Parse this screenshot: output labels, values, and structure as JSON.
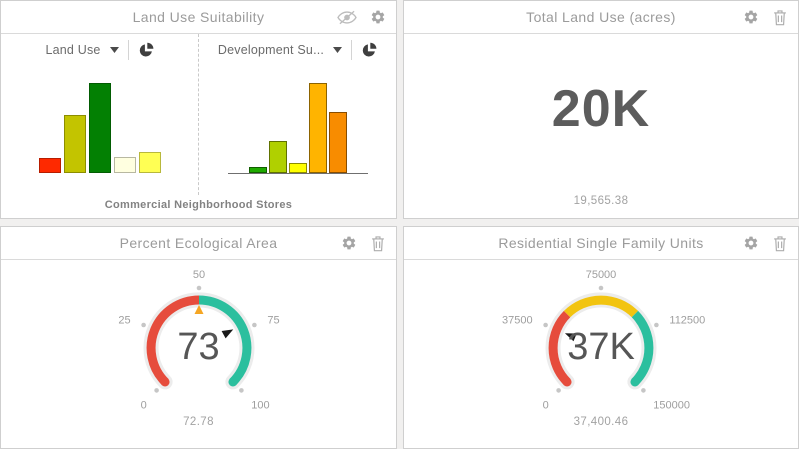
{
  "colors": {
    "gauge_red": "#e64c3c",
    "gauge_teal": "#2bbf9e",
    "gauge_yellow": "#f2c410",
    "threshold_orange": "#f5a623",
    "panel_border": "#cfcfcf",
    "header_text": "#9b9b9b"
  },
  "panels": {
    "suitability": {
      "title": "Land Use Suitability",
      "header_icons": [
        "visibility-off",
        "gear"
      ],
      "selectors": [
        {
          "label": "Land Use"
        },
        {
          "label": "Development Su..."
        }
      ],
      "caption": "Commercial Neighborhood Stores"
    },
    "total_land_use": {
      "title": "Total Land Use (acres)",
      "header_icons": [
        "gear",
        "trash"
      ],
      "value": "20K",
      "secondary_value": "19,565.38"
    },
    "ecological": {
      "title": "Percent Ecological Area",
      "header_icons": [
        "gear",
        "trash"
      ],
      "value": "73",
      "secondary_value": "72.78"
    },
    "residential": {
      "title": "Residential Single Family Units",
      "header_icons": [
        "gear",
        "trash"
      ],
      "value": "37K",
      "secondary_value": "37,400.46"
    }
  },
  "chart_data": [
    {
      "id": "land-use-bar",
      "type": "bar",
      "title": "Land Use",
      "categories": [
        "",
        "",
        "",
        "",
        ""
      ],
      "values": [
        17,
        64,
        100,
        18,
        23
      ],
      "value_note": "relative bar heights (percent of tallest bar); no axis labels shown",
      "colors": [
        "#fe2900",
        "#c3c400",
        "#038003",
        "#ffffe0",
        "#ffff54"
      ],
      "bar_border": "rgba(0,0,0,0.28)",
      "axis_line": false,
      "legend": "off",
      "grid": "off"
    },
    {
      "id": "development-suitability-bar",
      "type": "bar",
      "title": "Development Su...",
      "categories": [
        "",
        "",
        "",
        "",
        ""
      ],
      "values": [
        7,
        36,
        11,
        100,
        68
      ],
      "value_note": "relative bar heights (percent of tallest bar); no axis labels shown",
      "colors": [
        "#1faa00",
        "#b0d000",
        "#ffff00",
        "#ffb400",
        "#f88c00"
      ],
      "bar_border": "rgba(0,0,0,0.45)",
      "axis_line": true,
      "legend": "off",
      "grid": "off"
    },
    {
      "id": "ecological-gauge",
      "type": "gauge",
      "title": "Percent Ecological Area",
      "min": 0,
      "max": 100,
      "value": 72.78,
      "display_value": "73",
      "ticks": [
        "0",
        "25",
        "50",
        "75",
        "100"
      ],
      "segments": [
        {
          "from": 0,
          "to": 50,
          "color": "#e64c3c"
        },
        {
          "from": 50,
          "to": 100,
          "color": "#2bbf9e"
        }
      ],
      "threshold": 50,
      "threshold_color": "#f5a623",
      "secondary_value": "72.78"
    },
    {
      "id": "residential-gauge",
      "type": "gauge",
      "title": "Residential Single Family Units",
      "min": 0,
      "max": 150000,
      "value": 37400.46,
      "display_value": "37K",
      "ticks": [
        "0",
        "37500",
        "75000",
        "112500",
        "150000"
      ],
      "segments": [
        {
          "from": 0,
          "to": 50000,
          "color": "#e64c3c"
        },
        {
          "from": 50000,
          "to": 100000,
          "color": "#f2c410"
        },
        {
          "from": 100000,
          "to": 150000,
          "color": "#2bbf9e"
        }
      ],
      "threshold": null,
      "secondary_value": "37,400.46"
    }
  ]
}
